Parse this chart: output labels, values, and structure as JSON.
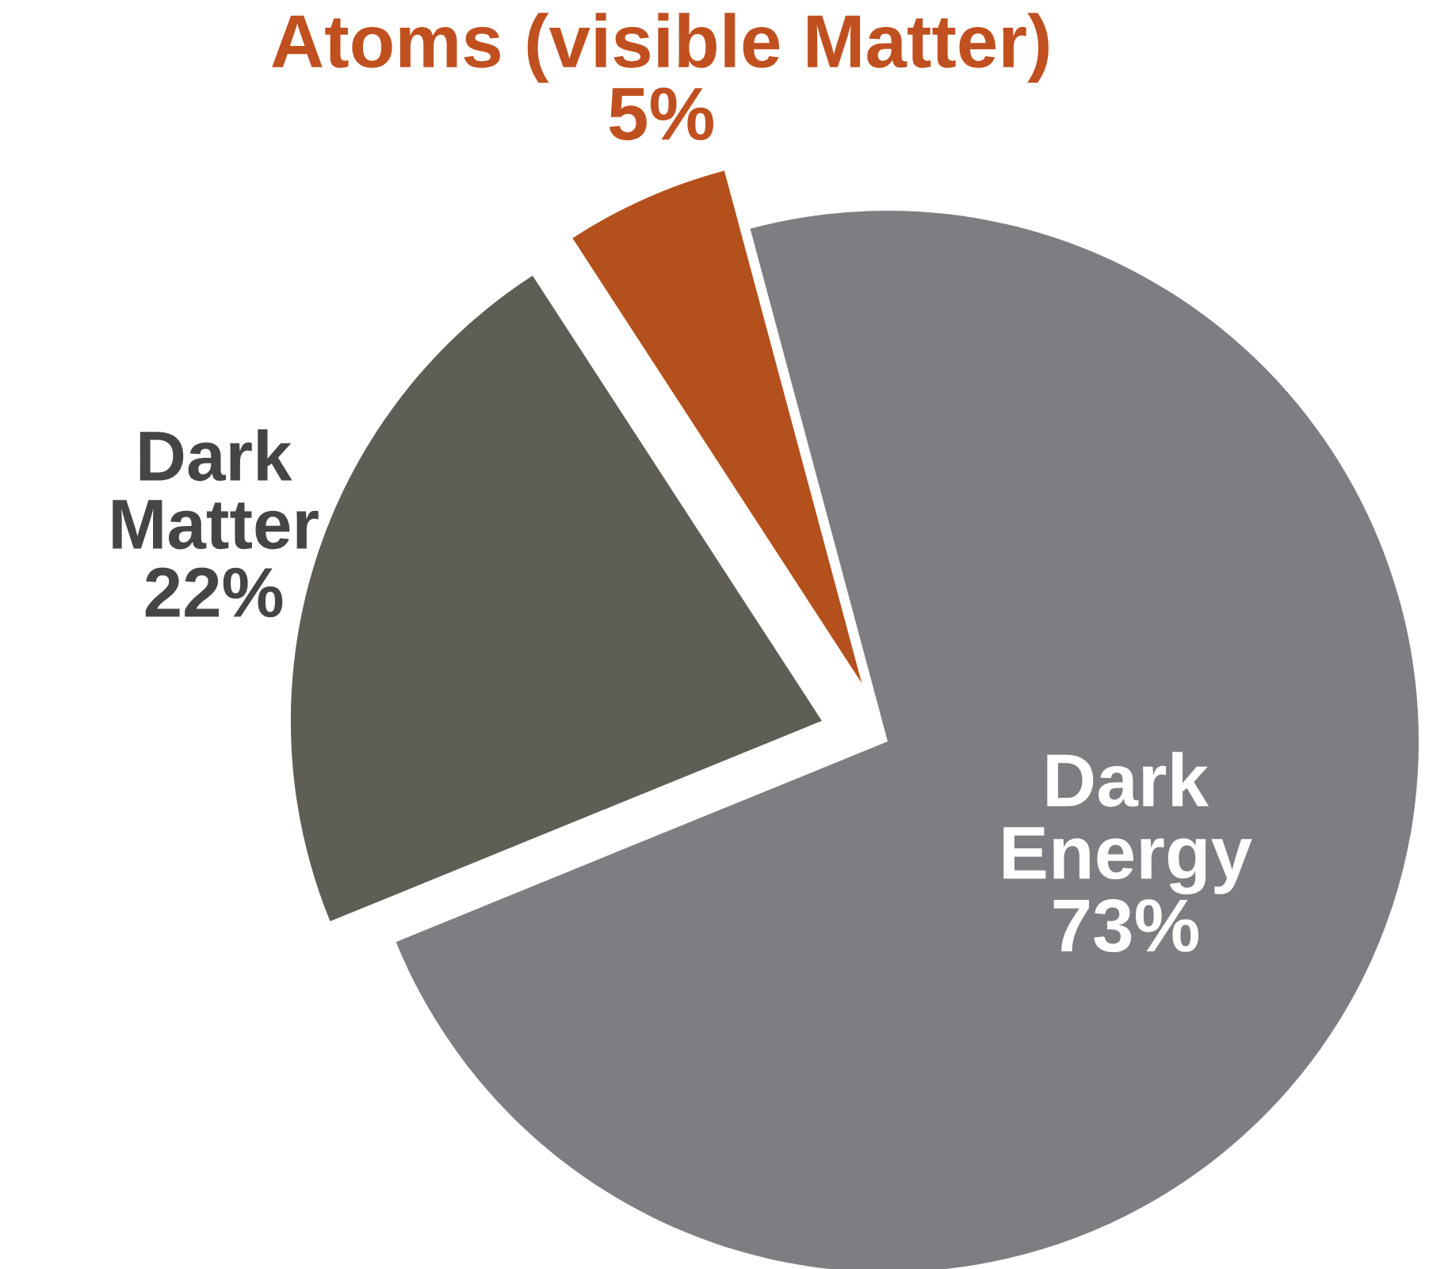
{
  "chart_data": {
    "type": "pie",
    "categories": [
      "Dark\nEnergy",
      "Dark\nMatter",
      "Atoms (visible Matter)"
    ],
    "values": [
      73,
      22,
      5
    ],
    "value_labels": [
      "73%",
      "22%",
      "5%"
    ],
    "colors": [
      "#7e7e82",
      "#5e5e57",
      "#b4501c"
    ],
    "legend": false
  }
}
